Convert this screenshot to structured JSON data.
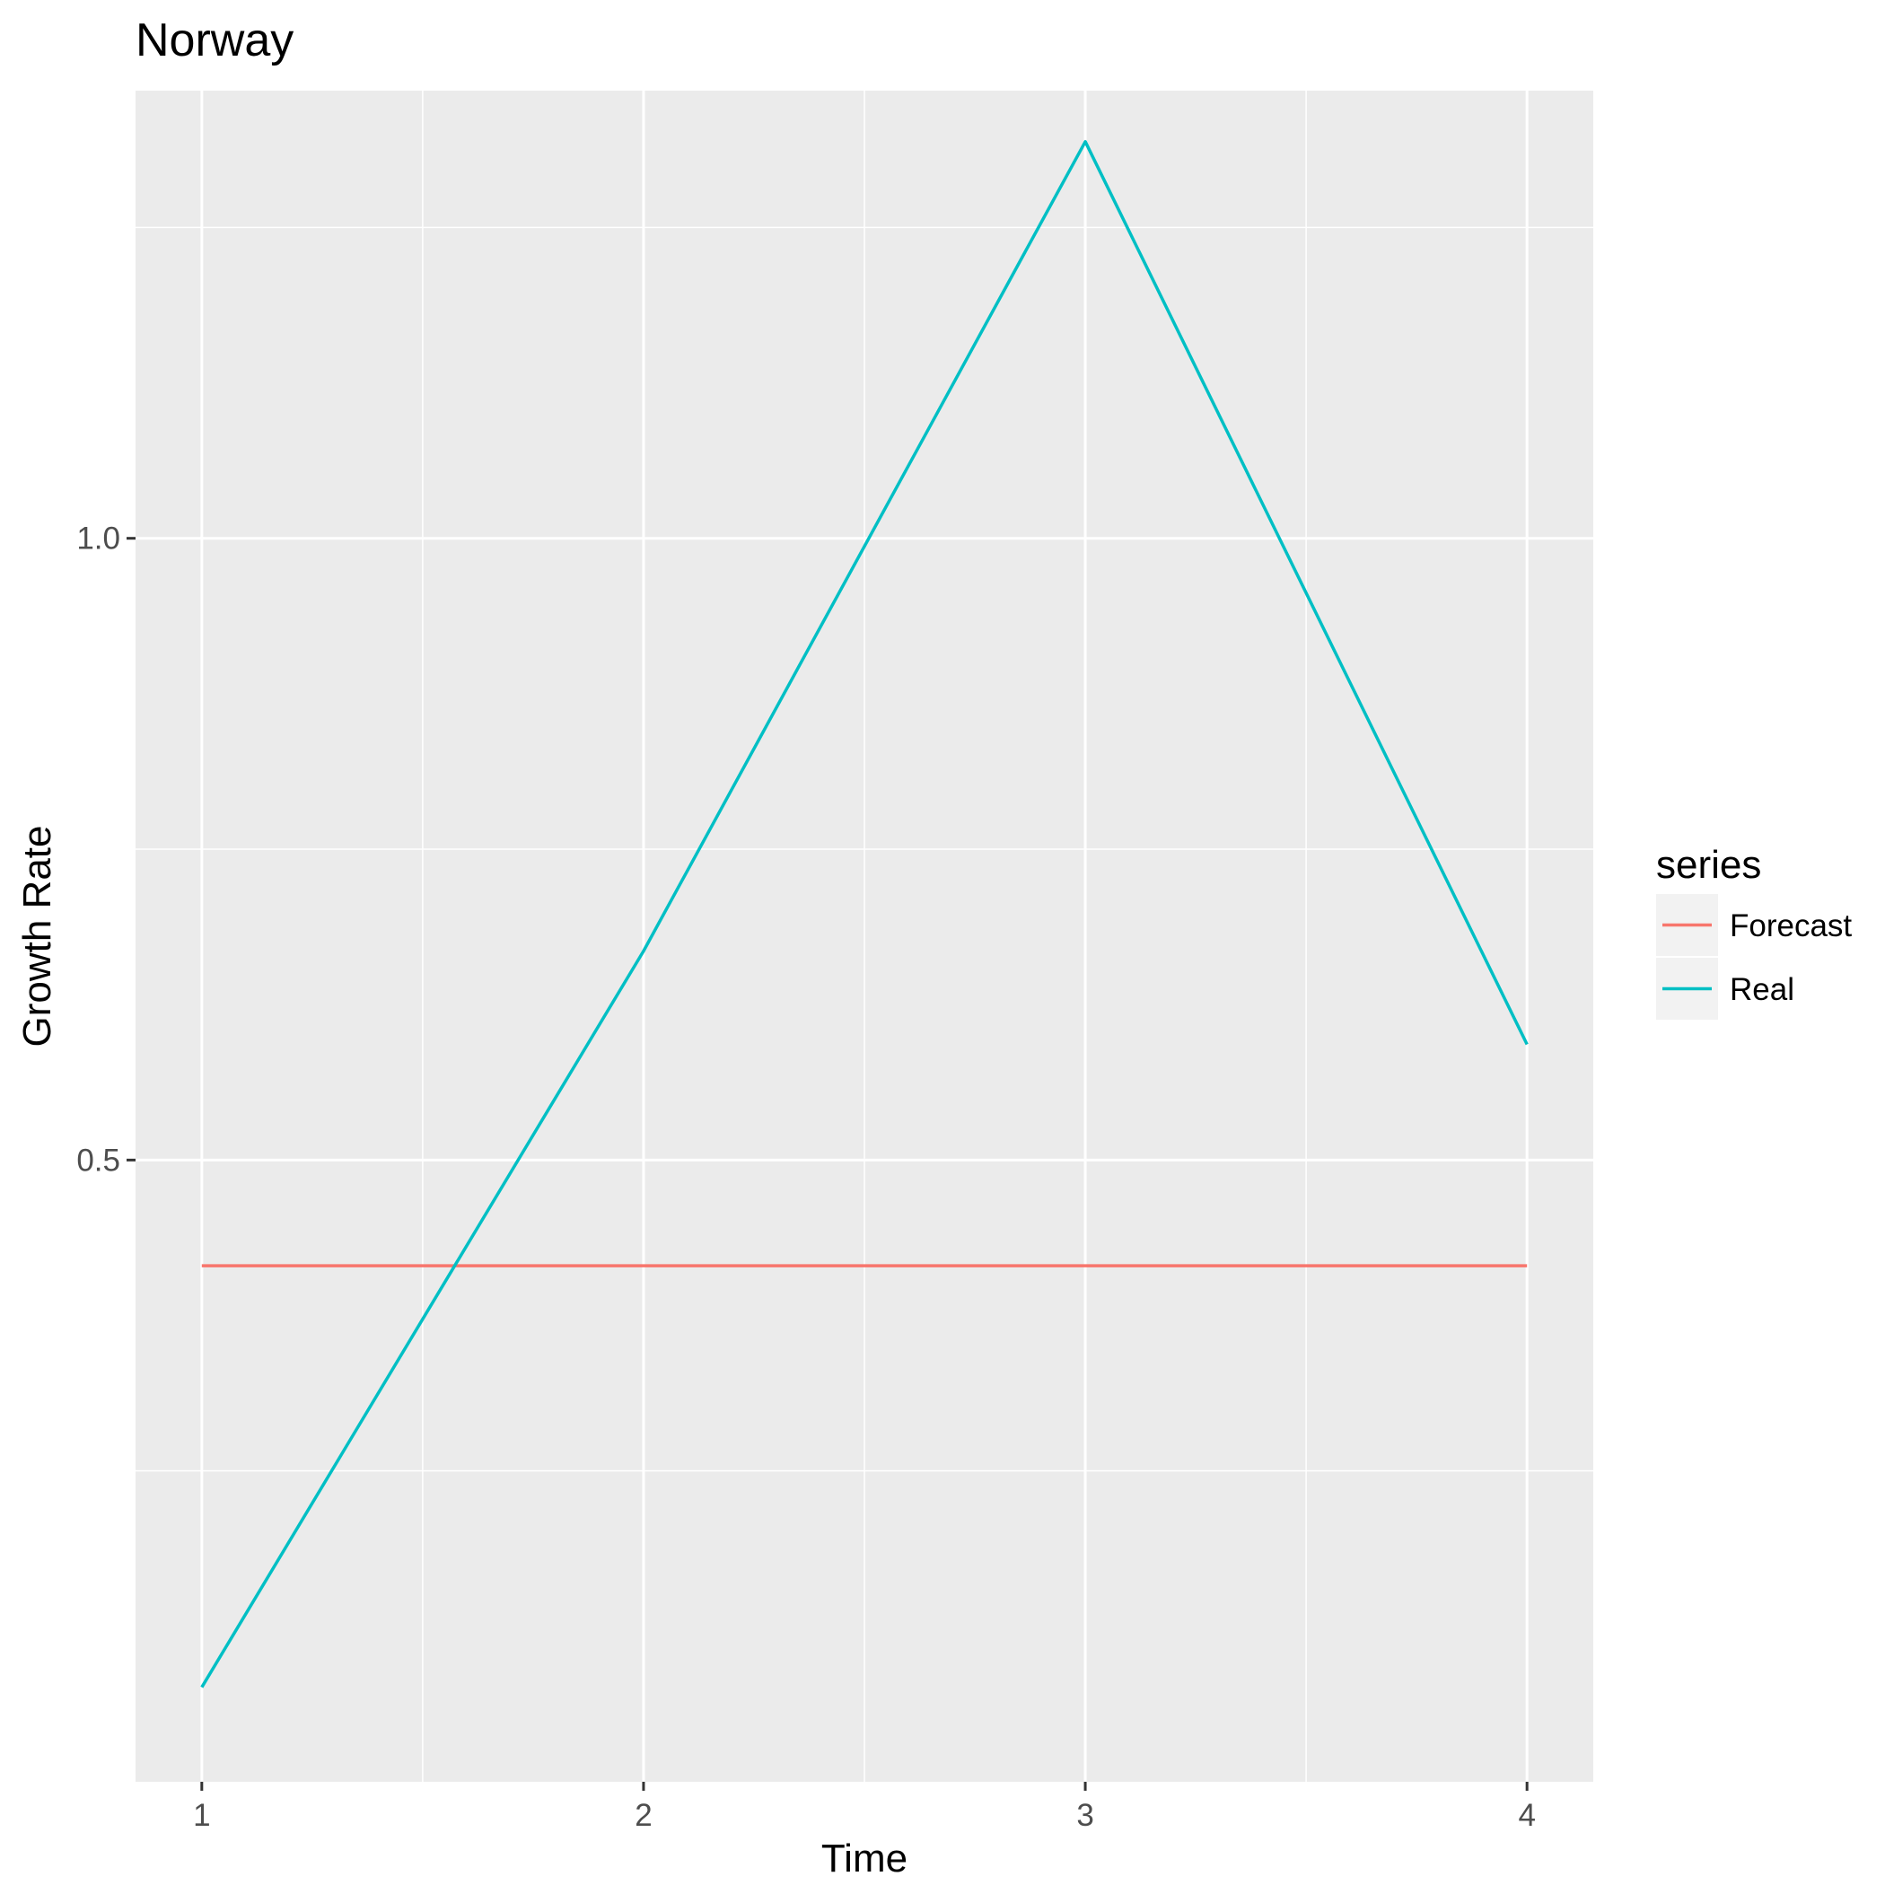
{
  "chart_data": {
    "type": "line",
    "title": "Norway",
    "xlabel": "Time",
    "ylabel": "Growth Rate",
    "x": [
      1,
      2,
      3,
      4
    ],
    "x_ticks": [
      "1",
      "2",
      "3",
      "4"
    ],
    "y_ticks": [
      {
        "value": 0.5,
        "label": "0.5"
      },
      {
        "value": 1.0,
        "label": "1.0"
      }
    ],
    "xlim": [
      0.85,
      4.15
    ],
    "ylim": [
      -0.0,
      1.36
    ],
    "grid": true,
    "legend_placement": "right",
    "legend_title": "series",
    "series": [
      {
        "name": "Forecast",
        "color": "#F8766D",
        "values": [
          0.415,
          0.415,
          0.415,
          0.415
        ]
      },
      {
        "name": "Real",
        "color": "#00BFC4",
        "values": [
          0.076,
          0.668,
          1.319,
          0.593
        ]
      }
    ]
  }
}
